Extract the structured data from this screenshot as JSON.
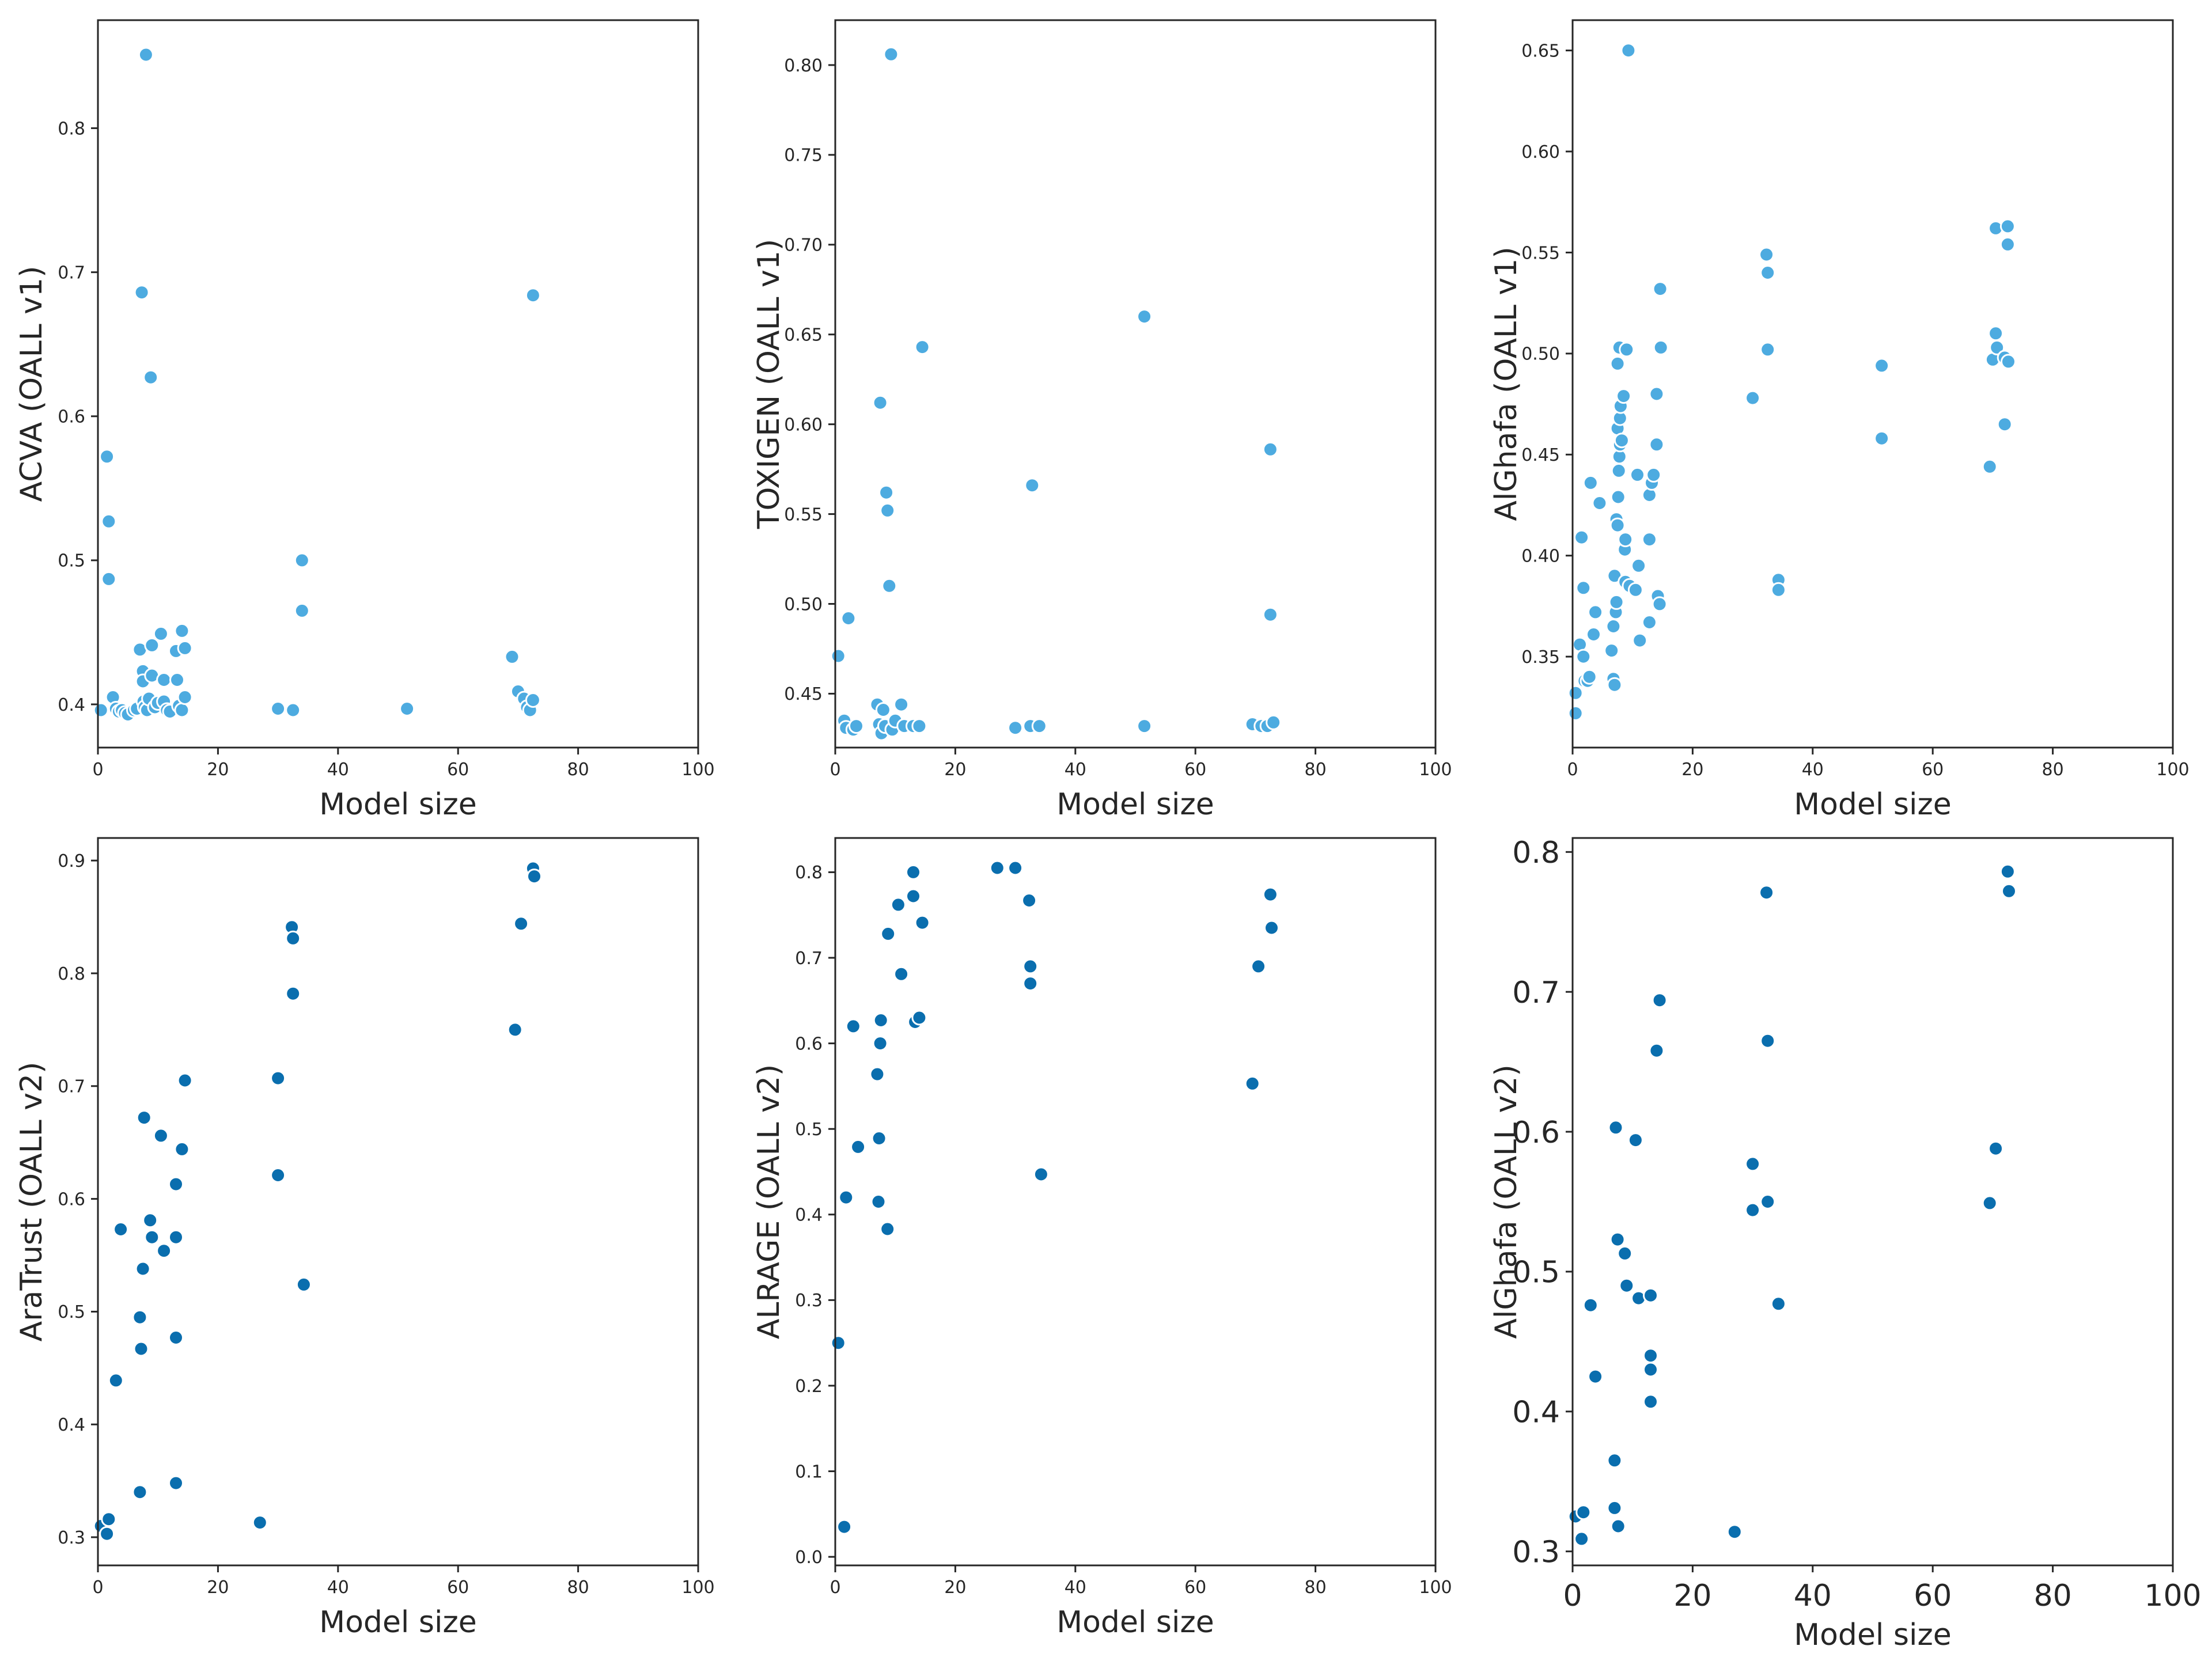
{
  "chart_data": [
    {
      "type": "scatter",
      "panel": "top-left",
      "xlabel": "Model size",
      "ylabel": "ACVA (OALL v1)",
      "xlim": [
        0,
        100
      ],
      "ylim": [
        0.37,
        0.875
      ],
      "xticks": [
        "0",
        "20",
        "40",
        "60",
        "80",
        "100"
      ],
      "yticks": [
        "0.4",
        "0.5",
        "0.6",
        "0.7",
        "0.8"
      ],
      "yticks_values": [
        0.4,
        0.5,
        0.6,
        0.7,
        0.8
      ],
      "grid": false,
      "color": "#4dabe0",
      "points": [
        [
          0.5,
          0.396
        ],
        [
          1.5,
          0.572
        ],
        [
          1.8,
          0.527
        ],
        [
          1.8,
          0.487
        ],
        [
          2.5,
          0.405
        ],
        [
          3,
          0.397
        ],
        [
          3.5,
          0.395
        ],
        [
          4,
          0.396
        ],
        [
          4.5,
          0.394
        ],
        [
          5,
          0.393
        ],
        [
          6,
          0.396
        ],
        [
          6.5,
          0.397
        ],
        [
          7,
          0.438
        ],
        [
          7.3,
          0.686
        ],
        [
          7.5,
          0.423
        ],
        [
          7.5,
          0.416
        ],
        [
          7.6,
          0.402
        ],
        [
          7.8,
          0.398
        ],
        [
          8,
          0.851
        ],
        [
          8.2,
          0.396
        ],
        [
          8.5,
          0.404
        ],
        [
          8.8,
          0.627
        ],
        [
          9,
          0.441
        ],
        [
          9,
          0.42
        ],
        [
          9.5,
          0.398
        ],
        [
          10,
          0.401
        ],
        [
          10.5,
          0.449
        ],
        [
          11,
          0.402
        ],
        [
          11,
          0.417
        ],
        [
          11.5,
          0.396
        ],
        [
          12,
          0.395
        ],
        [
          13,
          0.437
        ],
        [
          13.2,
          0.417
        ],
        [
          13.5,
          0.399
        ],
        [
          14,
          0.451
        ],
        [
          14,
          0.396
        ],
        [
          14.5,
          0.439
        ],
        [
          14.5,
          0.405
        ],
        [
          30,
          0.397
        ],
        [
          32.5,
          0.396
        ],
        [
          34,
          0.5
        ],
        [
          34,
          0.465
        ],
        [
          51.5,
          0.397
        ],
        [
          69,
          0.433
        ],
        [
          70,
          0.409
        ],
        [
          71,
          0.404
        ],
        [
          71.5,
          0.398
        ],
        [
          72,
          0.396
        ],
        [
          72.5,
          0.684
        ],
        [
          72.5,
          0.403
        ]
      ]
    },
    {
      "type": "scatter",
      "panel": "top-middle",
      "xlabel": "Model size",
      "ylabel": "TOXIGEN (OALL v1)",
      "xlim": [
        0,
        100
      ],
      "ylim": [
        0.42,
        0.825
      ],
      "xticks": [
        "0",
        "20",
        "40",
        "60",
        "80",
        "100"
      ],
      "yticks": [
        "0.45",
        "0.50",
        "0.55",
        "0.60",
        "0.65",
        "0.70",
        "0.75",
        "0.80"
      ],
      "yticks_values": [
        0.45,
        0.5,
        0.55,
        0.6,
        0.65,
        0.7,
        0.75,
        0.8
      ],
      "grid": false,
      "color": "#4dabe0",
      "points": [
        [
          0.5,
          0.471
        ],
        [
          1.5,
          0.435
        ],
        [
          1.8,
          0.431
        ],
        [
          2.2,
          0.492
        ],
        [
          3,
          0.43
        ],
        [
          3.5,
          0.432
        ],
        [
          7,
          0.444
        ],
        [
          7.3,
          0.433
        ],
        [
          7.5,
          0.612
        ],
        [
          7.7,
          0.428
        ],
        [
          8,
          0.441
        ],
        [
          8.3,
          0.432
        ],
        [
          8.5,
          0.562
        ],
        [
          8.7,
          0.552
        ],
        [
          9,
          0.51
        ],
        [
          9.3,
          0.806
        ],
        [
          9.5,
          0.43
        ],
        [
          10,
          0.435
        ],
        [
          11,
          0.444
        ],
        [
          11.5,
          0.432
        ],
        [
          13,
          0.432
        ],
        [
          14,
          0.432
        ],
        [
          14.5,
          0.643
        ],
        [
          30,
          0.431
        ],
        [
          32.5,
          0.432
        ],
        [
          32.8,
          0.566
        ],
        [
          34,
          0.432
        ],
        [
          51.5,
          0.66
        ],
        [
          51.5,
          0.432
        ],
        [
          69.5,
          0.433
        ],
        [
          71,
          0.432
        ],
        [
          72,
          0.432
        ],
        [
          72.5,
          0.494
        ],
        [
          72.5,
          0.586
        ],
        [
          73,
          0.434
        ]
      ]
    },
    {
      "type": "scatter",
      "panel": "top-right",
      "xlabel": "Model size",
      "ylabel": "AlGhafa (OALL v1)",
      "xlim": [
        0,
        100
      ],
      "ylim": [
        0.305,
        0.665
      ],
      "xticks": [
        "0",
        "20",
        "40",
        "60",
        "80",
        "100"
      ],
      "yticks": [
        "0.35",
        "0.40",
        "0.45",
        "0.50",
        "0.55",
        "0.60",
        "0.65"
      ],
      "yticks_values": [
        0.35,
        0.4,
        0.45,
        0.5,
        0.55,
        0.6,
        0.65
      ],
      "grid": false,
      "color": "#4dabe0",
      "points": [
        [
          0.5,
          0.322
        ],
        [
          0.5,
          0.332
        ],
        [
          1.2,
          0.356
        ],
        [
          1.5,
          0.409
        ],
        [
          1.8,
          0.384
        ],
        [
          1.8,
          0.35
        ],
        [
          2,
          0.338
        ],
        [
          2.5,
          0.338
        ],
        [
          2.8,
          0.34
        ],
        [
          3,
          0.436
        ],
        [
          3.5,
          0.361
        ],
        [
          3.8,
          0.372
        ],
        [
          4.5,
          0.426
        ],
        [
          6.5,
          0.353
        ],
        [
          6.8,
          0.365
        ],
        [
          6.8,
          0.339
        ],
        [
          7,
          0.336
        ],
        [
          7,
          0.39
        ],
        [
          7.2,
          0.372
        ],
        [
          7.3,
          0.377
        ],
        [
          7.3,
          0.418
        ],
        [
          7.5,
          0.415
        ],
        [
          7.5,
          0.463
        ],
        [
          7.5,
          0.495
        ],
        [
          7.6,
          0.429
        ],
        [
          7.7,
          0.442
        ],
        [
          7.8,
          0.449
        ],
        [
          7.8,
          0.503
        ],
        [
          7.9,
          0.455
        ],
        [
          7.9,
          0.468
        ],
        [
          8,
          0.474
        ],
        [
          8.2,
          0.457
        ],
        [
          8.5,
          0.479
        ],
        [
          8.7,
          0.403
        ],
        [
          8.8,
          0.387
        ],
        [
          8.8,
          0.408
        ],
        [
          9,
          0.502
        ],
        [
          9.3,
          0.65
        ],
        [
          9.5,
          0.385
        ],
        [
          10.5,
          0.383
        ],
        [
          10.8,
          0.44
        ],
        [
          11,
          0.395
        ],
        [
          11.2,
          0.358
        ],
        [
          12.8,
          0.367
        ],
        [
          12.8,
          0.43
        ],
        [
          12.8,
          0.408
        ],
        [
          13.2,
          0.436
        ],
        [
          13.5,
          0.44
        ],
        [
          14,
          0.48
        ],
        [
          14,
          0.455
        ],
        [
          14.2,
          0.38
        ],
        [
          14.5,
          0.376
        ],
        [
          14.6,
          0.532
        ],
        [
          14.7,
          0.503
        ],
        [
          30,
          0.478
        ],
        [
          32.3,
          0.549
        ],
        [
          32.5,
          0.54
        ],
        [
          32.5,
          0.502
        ],
        [
          34.3,
          0.388
        ],
        [
          34.3,
          0.383
        ],
        [
          51.5,
          0.494
        ],
        [
          51.5,
          0.458
        ],
        [
          69.5,
          0.444
        ],
        [
          70,
          0.497
        ],
        [
          70.5,
          0.562
        ],
        [
          70.5,
          0.51
        ],
        [
          70.7,
          0.503
        ],
        [
          72,
          0.498
        ],
        [
          72,
          0.465
        ],
        [
          72.5,
          0.563
        ],
        [
          72.5,
          0.554
        ],
        [
          72.6,
          0.496
        ]
      ]
    },
    {
      "type": "scatter",
      "panel": "bottom-left",
      "xlabel": "Model size",
      "ylabel": "AraTrust (OALL v2)",
      "xlim": [
        0,
        100
      ],
      "ylim": [
        0.275,
        0.92
      ],
      "xticks": [
        "0",
        "20",
        "40",
        "60",
        "80",
        "100"
      ],
      "yticks": [
        "0.3",
        "0.4",
        "0.5",
        "0.6",
        "0.7",
        "0.8",
        "0.9"
      ],
      "yticks_values": [
        0.3,
        0.4,
        0.5,
        0.6,
        0.7,
        0.8,
        0.9
      ],
      "grid": false,
      "color": "#0a6eae",
      "points": [
        [
          0.5,
          0.31
        ],
        [
          1.5,
          0.303
        ],
        [
          1.8,
          0.316
        ],
        [
          3,
          0.439
        ],
        [
          3.8,
          0.573
        ],
        [
          7,
          0.34
        ],
        [
          7,
          0.495
        ],
        [
          7.2,
          0.467
        ],
        [
          7.5,
          0.538
        ],
        [
          7.7,
          0.672
        ],
        [
          8.7,
          0.581
        ],
        [
          9,
          0.566
        ],
        [
          10.5,
          0.656
        ],
        [
          11,
          0.554
        ],
        [
          13,
          0.613
        ],
        [
          13,
          0.566
        ],
        [
          13,
          0.477
        ],
        [
          13,
          0.348
        ],
        [
          14,
          0.644
        ],
        [
          14.5,
          0.705
        ],
        [
          27,
          0.313
        ],
        [
          30,
          0.707
        ],
        [
          30,
          0.621
        ],
        [
          32.3,
          0.841
        ],
        [
          32.5,
          0.831
        ],
        [
          32.5,
          0.782
        ],
        [
          34.3,
          0.524
        ],
        [
          69.5,
          0.75
        ],
        [
          70.5,
          0.844
        ],
        [
          72.5,
          0.893
        ],
        [
          72.7,
          0.886
        ]
      ]
    },
    {
      "type": "scatter",
      "panel": "bottom-middle",
      "xlabel": "Model size",
      "ylabel": "ALRAGE (OALL v2)",
      "xlim": [
        0,
        100
      ],
      "ylim": [
        -0.01,
        0.84
      ],
      "xticks": [
        "0",
        "20",
        "40",
        "60",
        "80",
        "100"
      ],
      "yticks": [
        "0.0",
        "0.1",
        "0.2",
        "0.3",
        "0.4",
        "0.5",
        "0.6",
        "0.7",
        "0.8"
      ],
      "yticks_values": [
        0.0,
        0.1,
        0.2,
        0.3,
        0.4,
        0.5,
        0.6,
        0.7,
        0.8
      ],
      "grid": false,
      "color": "#0a6eae",
      "points": [
        [
          0.5,
          0.25
        ],
        [
          1.5,
          0.035
        ],
        [
          1.8,
          0.42
        ],
        [
          3,
          0.62
        ],
        [
          3.8,
          0.479
        ],
        [
          7,
          0.564
        ],
        [
          7.2,
          0.415
        ],
        [
          7.3,
          0.489
        ],
        [
          7.5,
          0.6
        ],
        [
          7.6,
          0.627
        ],
        [
          8.7,
          0.383
        ],
        [
          8.8,
          0.728
        ],
        [
          10.5,
          0.762
        ],
        [
          11,
          0.681
        ],
        [
          13,
          0.8
        ],
        [
          13,
          0.772
        ],
        [
          13.3,
          0.625
        ],
        [
          14,
          0.63
        ],
        [
          14.5,
          0.741
        ],
        [
          27,
          0.805
        ],
        [
          30,
          0.805
        ],
        [
          32.3,
          0.767
        ],
        [
          32.5,
          0.69
        ],
        [
          32.5,
          0.67
        ],
        [
          34.3,
          0.447
        ],
        [
          69.5,
          0.553
        ],
        [
          70.5,
          0.69
        ],
        [
          72.5,
          0.774
        ],
        [
          72.7,
          0.735
        ]
      ]
    },
    {
      "type": "scatter",
      "panel": "bottom-right",
      "xlabel": "Model size",
      "ylabel": "AlGhafa (OALL v2)",
      "xlim": [
        0,
        100
      ],
      "ylim": [
        0.29,
        0.81
      ],
      "xticks": [
        "0",
        "20",
        "40",
        "60",
        "80",
        "100"
      ],
      "yticks": [
        "0.3",
        "0.4",
        "0.5",
        "0.6",
        "0.7",
        "0.8"
      ],
      "yticks_values": [
        0.3,
        0.4,
        0.5,
        0.6,
        0.7,
        0.8
      ],
      "grid": false,
      "color": "#0a6eae",
      "points": [
        [
          0.5,
          0.325
        ],
        [
          1.5,
          0.309
        ],
        [
          1.8,
          0.328
        ],
        [
          3,
          0.476
        ],
        [
          3.8,
          0.425
        ],
        [
          7,
          0.365
        ],
        [
          7,
          0.331
        ],
        [
          7.2,
          0.603
        ],
        [
          7.5,
          0.523
        ],
        [
          7.6,
          0.318
        ],
        [
          8.7,
          0.513
        ],
        [
          9,
          0.49
        ],
        [
          10.5,
          0.594
        ],
        [
          11,
          0.481
        ],
        [
          13,
          0.483
        ],
        [
          13,
          0.44
        ],
        [
          13,
          0.43
        ],
        [
          13,
          0.407
        ],
        [
          14,
          0.658
        ],
        [
          14.5,
          0.694
        ],
        [
          27,
          0.314
        ],
        [
          30,
          0.577
        ],
        [
          30,
          0.544
        ],
        [
          32.3,
          0.771
        ],
        [
          32.5,
          0.665
        ],
        [
          32.5,
          0.55
        ],
        [
          34.3,
          0.477
        ],
        [
          69.5,
          0.549
        ],
        [
          70.5,
          0.588
        ],
        [
          72.5,
          0.786
        ],
        [
          72.7,
          0.772
        ]
      ]
    }
  ]
}
